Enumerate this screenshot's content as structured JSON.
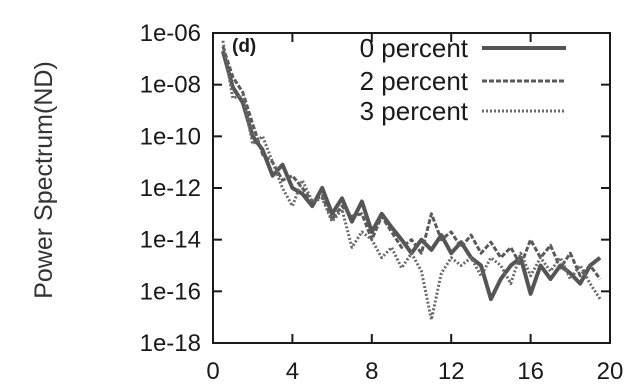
{
  "chart_data": {
    "type": "line",
    "title": "",
    "panel_label": "(d)",
    "xlabel": "",
    "ylabel": "Power Spectrum(ND)",
    "y_scale": "log",
    "xlim": [
      0,
      20
    ],
    "ylim": [
      1e-18,
      1e-06
    ],
    "x_ticks": [
      0,
      4,
      8,
      12,
      16,
      20
    ],
    "x_tick_labels": [
      "0",
      "4",
      "8",
      "12",
      "16",
      "20"
    ],
    "y_ticks": [
      1e-06,
      1e-08,
      1e-10,
      1e-12,
      1e-14,
      1e-16,
      1e-18
    ],
    "y_tick_labels": [
      "1e-06",
      "1e-08",
      "1e-10",
      "1e-12",
      "1e-14",
      "1e-16",
      "1e-18"
    ],
    "grid": false,
    "legend_position": "top-right",
    "series": [
      {
        "name": "0 percent",
        "style": "solid",
        "color": "#555555",
        "x": [
          0.5,
          1.0,
          1.5,
          2.0,
          2.5,
          3.0,
          3.5,
          4.0,
          4.5,
          5.0,
          5.5,
          6.0,
          6.5,
          7.0,
          7.5,
          8.0,
          8.5,
          9.0,
          9.5,
          10.0,
          10.5,
          11.0,
          11.5,
          12.0,
          12.5,
          13.0,
          13.5,
          14.0,
          14.5,
          15.0,
          15.5,
          16.0,
          16.5,
          17.0,
          17.5,
          18.0,
          18.5,
          19.0,
          19.5
        ],
        "y": [
          2e-07,
          8e-09,
          2e-09,
          1e-10,
          3e-11,
          3e-12,
          8e-12,
          1e-12,
          6e-13,
          2e-13,
          1e-12,
          1e-13,
          4e-13,
          5e-14,
          3e-13,
          2e-14,
          1e-13,
          3e-14,
          1e-14,
          3e-15,
          1e-14,
          4e-15,
          1.5e-14,
          3e-15,
          8e-15,
          2e-15,
          1e-15,
          5e-17,
          3e-16,
          1e-15,
          2e-15,
          8e-17,
          1e-15,
          3e-16,
          1e-15,
          5e-16,
          2e-16,
          1e-15,
          2e-15
        ]
      },
      {
        "name": "2 percent",
        "style": "dashed",
        "color": "#5a5a5a",
        "x": [
          0.5,
          1.0,
          1.5,
          2.0,
          2.5,
          3.0,
          3.5,
          4.0,
          4.5,
          5.0,
          5.5,
          6.0,
          6.5,
          7.0,
          7.5,
          8.0,
          8.5,
          9.0,
          9.5,
          10.0,
          10.5,
          11.0,
          11.5,
          12.0,
          12.5,
          13.0,
          13.5,
          14.0,
          14.5,
          15.0,
          15.5,
          16.0,
          16.5,
          17.0,
          17.5,
          18.0,
          18.5,
          19.0,
          19.5
        ],
        "y": [
          3e-07,
          2e-08,
          5e-09,
          3e-10,
          2e-11,
          1e-11,
          2e-12,
          3e-12,
          1e-12,
          3e-13,
          5e-13,
          6e-14,
          2e-13,
          8e-14,
          1e-13,
          1e-14,
          8e-14,
          2e-14,
          5e-15,
          1e-14,
          3e-15,
          1e-13,
          1e-14,
          2e-14,
          5e-15,
          1.5e-14,
          3e-15,
          8e-15,
          2e-15,
          5e-15,
          1e-15,
          1e-14,
          2e-15,
          6e-15,
          8e-16,
          3e-15,
          4e-16,
          1e-15,
          3e-16
        ]
      },
      {
        "name": "3 percent",
        "style": "dotted",
        "color": "#6a6a6a",
        "x": [
          0.5,
          1.0,
          1.5,
          2.0,
          2.5,
          3.0,
          3.5,
          4.0,
          4.5,
          5.0,
          5.5,
          6.0,
          6.5,
          7.0,
          7.5,
          8.0,
          8.5,
          9.0,
          9.5,
          10.0,
          10.5,
          11.0,
          11.5,
          12.0,
          12.5,
          13.0,
          13.5,
          14.0,
          14.5,
          15.0,
          15.5,
          16.0,
          16.5,
          17.0,
          17.5,
          18.0,
          18.5,
          19.0,
          19.5
        ],
        "y": [
          5e-07,
          3e-09,
          4e-09,
          5e-11,
          1e-10,
          1e-11,
          1e-12,
          2e-13,
          2e-12,
          3e-13,
          4e-13,
          5e-14,
          1.5e-13,
          5e-15,
          2e-14,
          1e-14,
          2e-15,
          5e-15,
          8e-16,
          3e-15,
          6e-16,
          8e-18,
          5e-16,
          2e-15,
          1e-15,
          2e-15,
          4e-16,
          2e-15,
          1e-15,
          2e-16,
          3e-15,
          4e-16,
          2e-15,
          6e-16,
          2e-15,
          3e-16,
          1e-15,
          2e-16,
          5e-17
        ]
      }
    ]
  }
}
